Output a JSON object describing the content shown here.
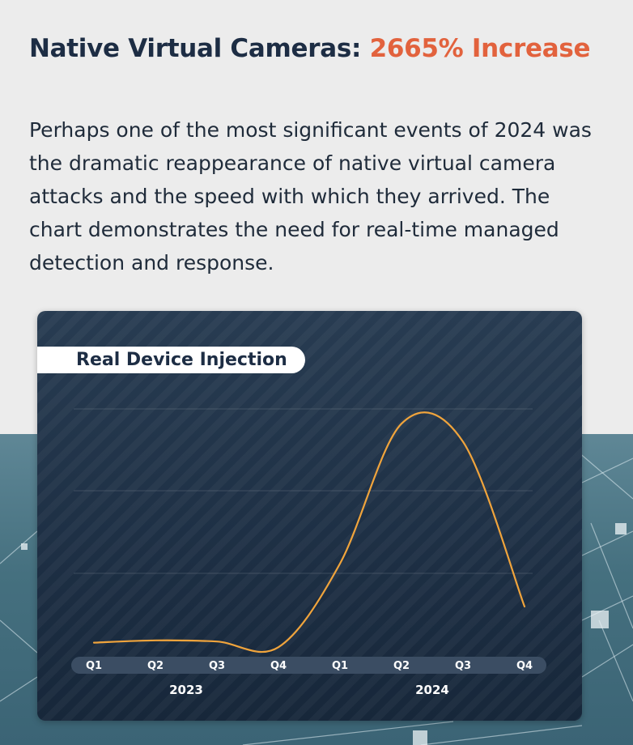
{
  "headline": {
    "prefix": "Native Virtual Cameras: ",
    "highlight": "2665% Increase"
  },
  "body": "Perhaps one of the most significant events of 2024 was the dramatic reappearance of native virtual camera attacks and the speed with which they arrived. The chart demonstrates the need for real-time managed detection and response.",
  "colors": {
    "headline": "#1d2d44",
    "accent": "#e2623d",
    "line": "#f0a43c",
    "card": "#1e3045"
  },
  "chart_data": {
    "type": "line",
    "title": "Real Device Injection",
    "categories": [
      "Q1",
      "Q2",
      "Q3",
      "Q4",
      "Q1",
      "Q2",
      "Q3",
      "Q4"
    ],
    "groups": [
      {
        "label": "2023",
        "categories": [
          "Q1",
          "Q2",
          "Q3",
          "Q4"
        ]
      },
      {
        "label": "2024",
        "categories": [
          "Q1",
          "Q2",
          "Q3",
          "Q4"
        ]
      }
    ],
    "values": [
      3,
      4,
      3.5,
      1,
      38,
      100,
      92,
      19
    ],
    "ylim": [
      0,
      104
    ],
    "yticks_shown": false,
    "grid": true,
    "legend": "none",
    "xlabel": "",
    "ylabel": ""
  }
}
